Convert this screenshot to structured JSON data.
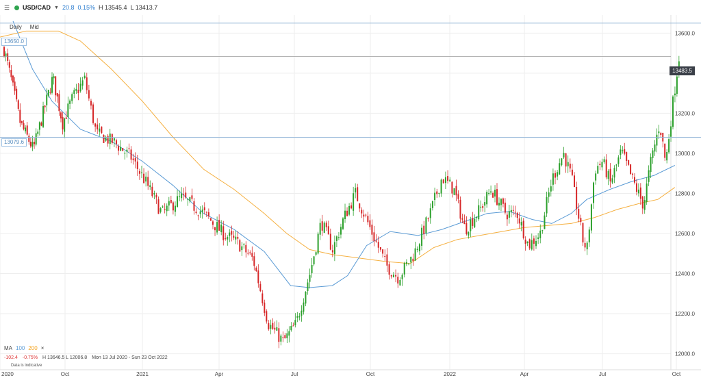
{
  "header": {
    "symbol": "USD/CAD",
    "change_abs": "20.8",
    "change_pct": "0.15%",
    "high": "H 13545.4",
    "low": "L 13413.7"
  },
  "subheader": {
    "interval": "Daily",
    "price_type": "Mid"
  },
  "horizontal_lines": [
    {
      "label": "13650.0",
      "value": 13650
    },
    {
      "label": "13079.6",
      "value": 13079.6
    }
  ],
  "current_price": {
    "label": "13483.5",
    "value": 13483.5
  },
  "indicators": {
    "name": "MA",
    "ma1": "100",
    "ma2": "200",
    "close": "×"
  },
  "stats": {
    "change_abs": "-102.4",
    "change_pct": "-0.75%",
    "hl": "H 13646.5  L 12006.8",
    "range": "Mon 13 Jul 2020 - Sun 23 Oct 2022"
  },
  "note": "Data is indicative",
  "colors": {
    "up": "#2ca02c",
    "down": "#d62728",
    "ma100": "#5b9bd5",
    "ma200": "#f5b041",
    "hline": "#8fb3d6"
  },
  "chart_data": {
    "type": "candlestick",
    "y_ticks": [
      "13600.0",
      "13400.0",
      "13200.0",
      "13000.0",
      "12800.0",
      "12600.0",
      "12400.0",
      "12200.0",
      "12000.0"
    ],
    "ylim": [
      11920,
      13690
    ],
    "x_ticks": [
      {
        "label": "2020",
        "t": 0
      },
      {
        "label": "Oct",
        "t": 1
      },
      {
        "label": "2021",
        "t": 2
      },
      {
        "label": "Apr",
        "t": 3
      },
      {
        "label": "Jul",
        "t": 4
      },
      {
        "label": "Oct",
        "t": 5
      },
      {
        "label": "2022",
        "t": 6
      },
      {
        "label": "Apr",
        "t": 7
      },
      {
        "label": "Jul",
        "t": 8
      },
      {
        "label": "Oct",
        "t": 9
      }
    ],
    "close_path": [
      [
        0,
        13520
      ],
      [
        0.1,
        13380
      ],
      [
        0.25,
        13150
      ],
      [
        0.45,
        13020
      ],
      [
        0.6,
        13200
      ],
      [
        0.75,
        13380
      ],
      [
        0.9,
        13150
      ],
      [
        1.05,
        13280
      ],
      [
        1.2,
        13370
      ],
      [
        1.35,
        13100
      ],
      [
        1.6,
        13050
      ],
      [
        1.8,
        12980
      ],
      [
        2.0,
        12850
      ],
      [
        2.2,
        12700
      ],
      [
        2.45,
        12780
      ],
      [
        2.75,
        12700
      ],
      [
        3.0,
        12600
      ],
      [
        3.2,
        12550
      ],
      [
        3.4,
        12470
      ],
      [
        3.6,
        12150
      ],
      [
        3.8,
        12060
      ],
      [
        3.97,
        12150
      ],
      [
        4.15,
        12400
      ],
      [
        4.3,
        12660
      ],
      [
        4.45,
        12520
      ],
      [
        4.6,
        12680
      ],
      [
        4.75,
        12800
      ],
      [
        4.95,
        12620
      ],
      [
        5.15,
        12440
      ],
      [
        5.3,
        12380
      ],
      [
        5.5,
        12500
      ],
      [
        5.7,
        12700
      ],
      [
        5.85,
        12880
      ],
      [
        6.0,
        12820
      ],
      [
        6.15,
        12620
      ],
      [
        6.35,
        12720
      ],
      [
        6.5,
        12820
      ],
      [
        6.7,
        12700
      ],
      [
        6.85,
        12700
      ],
      [
        7.0,
        12540
      ],
      [
        7.15,
        12600
      ],
      [
        7.3,
        12870
      ],
      [
        7.45,
        13000
      ],
      [
        7.55,
        12880
      ],
      [
        7.7,
        12560
      ],
      [
        7.75,
        12520
      ],
      [
        7.85,
        12920
      ],
      [
        7.95,
        12960
      ],
      [
        8.05,
        12850
      ],
      [
        8.2,
        13010
      ],
      [
        8.35,
        12870
      ],
      [
        8.5,
        12740
      ],
      [
        8.6,
        12960
      ],
      [
        8.72,
        13150
      ],
      [
        8.8,
        12950
      ],
      [
        8.9,
        13260
      ],
      [
        8.98,
        13480
      ]
    ],
    "ma100": [
      [
        0.2,
        13660
      ],
      [
        0.5,
        13420
      ],
      [
        0.8,
        13260
      ],
      [
        1.2,
        13120
      ],
      [
        1.6,
        13060
      ],
      [
        2.0,
        12960
      ],
      [
        2.4,
        12840
      ],
      [
        2.8,
        12700
      ],
      [
        3.2,
        12620
      ],
      [
        3.6,
        12510
      ],
      [
        3.95,
        12340
      ],
      [
        4.2,
        12330
      ],
      [
        4.5,
        12340
      ],
      [
        4.7,
        12390
      ],
      [
        4.95,
        12540
      ],
      [
        5.25,
        12610
      ],
      [
        5.6,
        12590
      ],
      [
        5.9,
        12620
      ],
      [
        6.2,
        12660
      ],
      [
        6.5,
        12700
      ],
      [
        6.8,
        12710
      ],
      [
        7.1,
        12670
      ],
      [
        7.35,
        12650
      ],
      [
        7.6,
        12700
      ],
      [
        7.8,
        12770
      ],
      [
        8.1,
        12820
      ],
      [
        8.4,
        12860
      ],
      [
        8.7,
        12890
      ],
      [
        8.98,
        12940
      ]
    ],
    "ma200": [
      [
        0,
        13580
      ],
      [
        0.4,
        13610
      ],
      [
        0.9,
        13610
      ],
      [
        1.2,
        13560
      ],
      [
        1.6,
        13420
      ],
      [
        2.0,
        13260
      ],
      [
        2.4,
        13080
      ],
      [
        2.8,
        12920
      ],
      [
        3.2,
        12820
      ],
      [
        3.6,
        12700
      ],
      [
        3.9,
        12600
      ],
      [
        4.2,
        12520
      ],
      [
        4.5,
        12495
      ],
      [
        4.8,
        12480
      ],
      [
        5.2,
        12460
      ],
      [
        5.5,
        12450
      ],
      [
        5.8,
        12530
      ],
      [
        6.1,
        12570
      ],
      [
        6.4,
        12590
      ],
      [
        6.7,
        12610
      ],
      [
        7.0,
        12630
      ],
      [
        7.3,
        12640
      ],
      [
        7.6,
        12650
      ],
      [
        7.9,
        12680
      ],
      [
        8.2,
        12720
      ],
      [
        8.5,
        12750
      ],
      [
        8.75,
        12770
      ],
      [
        8.98,
        12830
      ]
    ]
  }
}
